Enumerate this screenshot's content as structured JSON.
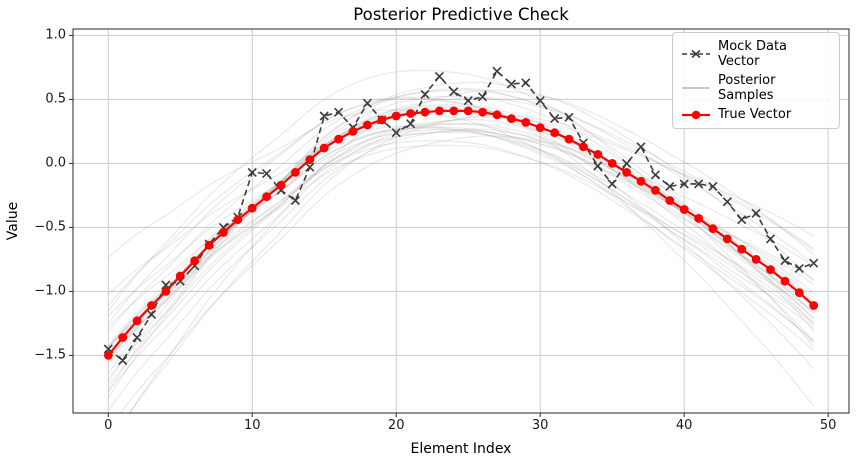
{
  "chart_data": {
    "type": "line",
    "title": "Posterior Predictive Check",
    "xlabel": "Element Index",
    "ylabel": "Value",
    "x": [
      0,
      1,
      2,
      3,
      4,
      5,
      6,
      7,
      8,
      9,
      10,
      11,
      12,
      13,
      14,
      15,
      16,
      17,
      18,
      19,
      20,
      21,
      22,
      23,
      24,
      25,
      26,
      27,
      28,
      29,
      30,
      31,
      32,
      33,
      34,
      35,
      36,
      37,
      38,
      39,
      40,
      41,
      42,
      43,
      44,
      45,
      46,
      47,
      48,
      49
    ],
    "series": [
      {
        "name": "Mock Data Vector",
        "type": "line",
        "linestyle": "dashed",
        "marker": "x",
        "color": "#3c3c3c",
        "values": [
          -1.45,
          -1.54,
          -1.36,
          -1.18,
          -0.95,
          -0.92,
          -0.8,
          -0.63,
          -0.5,
          -0.42,
          -0.07,
          -0.08,
          -0.21,
          -0.29,
          -0.03,
          0.37,
          0.4,
          0.28,
          0.47,
          0.34,
          0.24,
          0.31,
          0.54,
          0.68,
          0.56,
          0.49,
          0.52,
          0.72,
          0.62,
          0.63,
          0.49,
          0.35,
          0.36,
          0.16,
          -0.02,
          -0.16,
          0.0,
          0.13,
          -0.09,
          -0.18,
          -0.16,
          -0.16,
          -0.18,
          -0.3,
          -0.44,
          -0.39,
          -0.59,
          -0.76,
          -0.82,
          -0.78
        ]
      },
      {
        "name": "Posterior Samples",
        "type": "line-ensemble",
        "linestyle": "solid",
        "marker": "none",
        "color": "#999999",
        "opacity": 0.22,
        "count": 30,
        "seed": 42,
        "spread": {
          "offset_sd": 0.1,
          "tilt_sd": 0.28,
          "curvature_sd": 0.22
        },
        "description": "Bundle of smooth posterior draws hugging the true vector; wider spread near both edges"
      },
      {
        "name": "True Vector",
        "type": "line",
        "linestyle": "solid",
        "marker": "o",
        "color": "#ff0000",
        "values": [
          -1.5,
          -1.36,
          -1.23,
          -1.11,
          -1.0,
          -0.88,
          -0.76,
          -0.64,
          -0.54,
          -0.44,
          -0.35,
          -0.26,
          -0.17,
          -0.07,
          0.03,
          0.12,
          0.19,
          0.25,
          0.3,
          0.34,
          0.37,
          0.39,
          0.4,
          0.41,
          0.41,
          0.41,
          0.4,
          0.38,
          0.35,
          0.32,
          0.28,
          0.24,
          0.19,
          0.13,
          0.07,
          0.0,
          -0.07,
          -0.14,
          -0.21,
          -0.29,
          -0.36,
          -0.43,
          -0.51,
          -0.59,
          -0.67,
          -0.75,
          -0.83,
          -0.92,
          -1.01,
          -1.11
        ]
      }
    ],
    "xlim": [
      -2.45,
      51.45
    ],
    "ylim": [
      -1.95,
      1.05
    ],
    "xticks": {
      "values": [
        0,
        10,
        20,
        30,
        40,
        50
      ],
      "labels": [
        "0",
        "10",
        "20",
        "30",
        "40",
        "50"
      ]
    },
    "yticks": {
      "values": [
        1.0,
        0.5,
        0.0,
        -0.5,
        -1.0,
        -1.5
      ],
      "labels": [
        "1.0",
        "0.5",
        "0.0",
        "−0.5",
        "−1.0",
        "−1.5"
      ]
    },
    "grid": true,
    "legend": {
      "position": "upper right",
      "entries": [
        "Mock Data Vector",
        "Posterior Samples",
        "True Vector"
      ]
    },
    "style": {
      "grid_color": "#cccccc",
      "spine_color": "#262626",
      "tick_color": "#262626",
      "background": "#ffffff",
      "legend_sample_gray": "#b5b5b5"
    }
  }
}
